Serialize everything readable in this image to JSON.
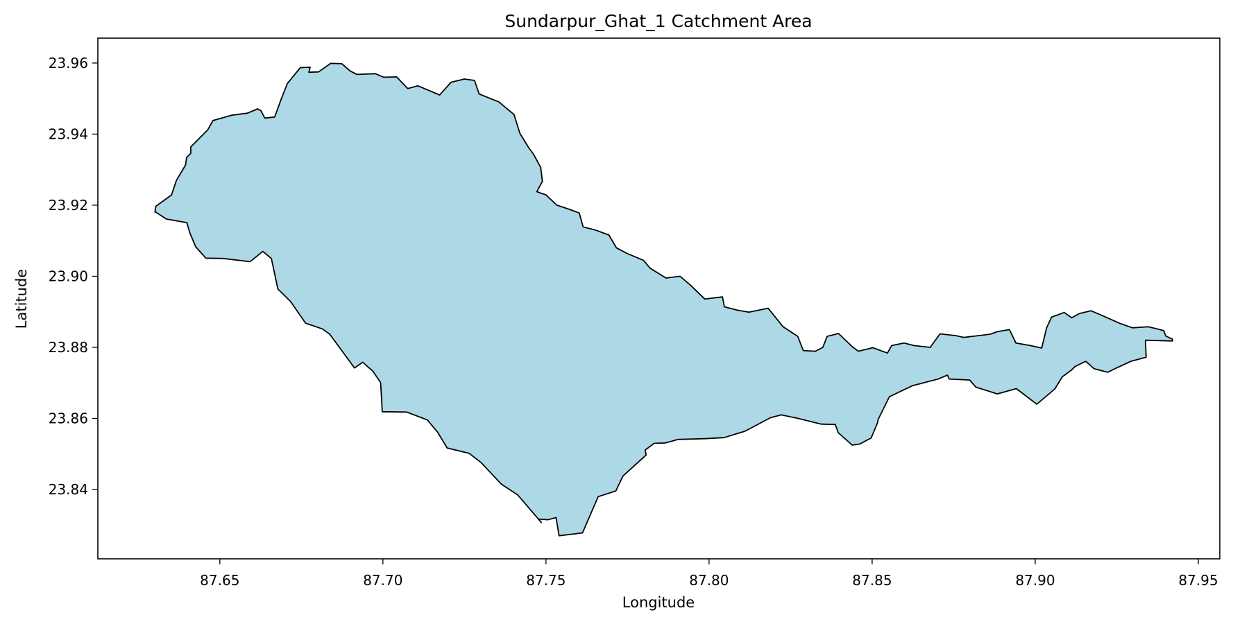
{
  "title": "Sundarpur_Ghat_1 Catchment Area",
  "axes": {
    "xlabel": "Longitude",
    "ylabel": "Latitude",
    "xticks": [
      "87.65",
      "87.70",
      "87.75",
      "87.80",
      "87.85",
      "87.90",
      "87.95"
    ],
    "yticks": [
      "23.84",
      "23.86",
      "23.88",
      "23.90",
      "23.92",
      "23.94",
      "23.96"
    ]
  },
  "colors": {
    "fill": "#add8e6",
    "outline": "#000000"
  },
  "chart_data": {
    "type": "area",
    "title": "Sundarpur_Ghat_1 Catchment Area",
    "xlabel": "Longitude",
    "ylabel": "Latitude",
    "xlim": [
      87.6126,
      87.9566
    ],
    "ylim": [
      23.8205,
      23.967
    ],
    "xticks": [
      87.65,
      87.7,
      87.75,
      87.8,
      87.85,
      87.9,
      87.95
    ],
    "yticks": [
      23.84,
      23.86,
      23.88,
      23.9,
      23.92,
      23.94,
      23.96
    ],
    "grid": false,
    "legend": "none",
    "geometry": "polygon",
    "boundary": {
      "lon": [
        87.6301,
        87.6304,
        87.6352,
        87.6367,
        87.6395,
        87.6398,
        87.6411,
        87.6411,
        87.6463,
        87.6479,
        87.6536,
        87.6585,
        87.6616,
        87.6626,
        87.6638,
        87.6668,
        87.6689,
        87.6707,
        87.6747,
        87.6777,
        87.6773,
        87.6803,
        87.684,
        87.6874,
        87.6899,
        87.692,
        87.6977,
        87.7003,
        87.7042,
        87.7076,
        87.7107,
        87.7174,
        87.7209,
        87.725,
        87.7281,
        87.7295,
        87.7335,
        87.7355,
        87.7402,
        87.742,
        87.7447,
        87.7462,
        87.7484,
        87.7489,
        87.7472,
        87.75,
        87.7533,
        87.757,
        87.7602,
        87.7614,
        87.7655,
        87.7693,
        87.7716,
        87.7749,
        87.7799,
        87.7819,
        87.7868,
        87.7911,
        87.7943,
        87.7987,
        87.8041,
        87.8047,
        87.8086,
        87.8122,
        87.8181,
        87.8227,
        87.8272,
        87.8289,
        87.8326,
        87.8349,
        87.8362,
        87.8397,
        87.8439,
        87.8458,
        87.8502,
        87.8547,
        87.856,
        87.8598,
        87.8628,
        87.8678,
        87.8708,
        87.8757,
        87.8781,
        87.8835,
        87.8862,
        87.8884,
        87.8921,
        87.8941,
        87.8985,
        87.902,
        87.9035,
        87.905,
        87.9089,
        87.9112,
        87.9135,
        87.9171,
        87.9212,
        87.9258,
        87.9298,
        87.9346,
        87.9373,
        87.9394,
        87.94,
        87.9421,
        87.9421,
        87.9338,
        87.934,
        87.9294,
        87.9247,
        87.9222,
        87.918,
        87.9155,
        87.9122,
        87.9111,
        87.9083,
        87.906,
        87.9005,
        87.8942,
        87.8884,
        87.8818,
        87.8799,
        87.8736,
        87.8731,
        87.8703,
        87.8623,
        87.8553,
        87.8519,
        87.8516,
        87.8497,
        87.8462,
        87.8439,
        87.8396,
        87.8387,
        87.8344,
        87.8269,
        87.8221,
        87.8188,
        87.811,
        87.8092,
        87.8046,
        87.7986,
        87.7905,
        87.7866,
        87.7832,
        87.7804,
        87.7807,
        87.7736,
        87.7714,
        87.766,
        87.7612,
        87.754,
        87.7531,
        87.7506,
        87.7476,
        87.7486,
        87.7413,
        87.7363,
        87.7302,
        87.7264,
        87.7197,
        87.7168,
        87.7136,
        87.7073,
        87.6998,
        87.6996,
        87.6993,
        87.6969,
        87.6938,
        87.6913,
        87.6837,
        87.6814,
        87.6763,
        87.6717,
        87.6678,
        87.6658,
        87.6632,
        87.6593,
        87.651,
        87.6457,
        87.6426,
        87.6408,
        87.6399,
        87.6336,
        87.6303,
        87.6301
      ],
      "lat": [
        23.9181,
        23.9197,
        23.9229,
        23.927,
        23.9313,
        23.9334,
        23.9346,
        23.9364,
        23.9412,
        23.9438,
        23.9453,
        23.9459,
        23.9471,
        23.9466,
        23.9445,
        23.9448,
        23.95,
        23.9542,
        23.9587,
        23.9588,
        23.9574,
        23.9575,
        23.9599,
        23.9598,
        23.9578,
        23.9568,
        23.957,
        23.956,
        23.9561,
        23.9528,
        23.9536,
        23.951,
        23.9546,
        23.9555,
        23.9551,
        23.9513,
        23.9498,
        23.9491,
        23.9455,
        23.9402,
        23.9362,
        23.9343,
        23.9306,
        23.9267,
        23.9238,
        23.9229,
        23.92,
        23.9189,
        23.9178,
        23.9139,
        23.9129,
        23.9116,
        23.908,
        23.9064,
        23.9045,
        23.9023,
        23.8995,
        23.9,
        23.8975,
        23.8936,
        23.8942,
        23.8914,
        23.8905,
        23.8899,
        23.891,
        23.8858,
        23.8831,
        23.8791,
        23.8789,
        23.88,
        23.8831,
        23.8839,
        23.8802,
        23.8789,
        23.8799,
        23.8784,
        23.8805,
        23.8812,
        23.8805,
        23.88,
        23.8838,
        23.8833,
        23.8828,
        23.8834,
        23.8837,
        23.8844,
        23.885,
        23.8812,
        23.8805,
        23.8798,
        23.8855,
        23.8885,
        23.8898,
        23.8883,
        23.8895,
        23.8903,
        23.8887,
        23.8868,
        23.8855,
        23.8858,
        23.8852,
        23.8847,
        23.8832,
        23.8823,
        23.8818,
        23.882,
        23.8772,
        23.8761,
        23.8741,
        23.873,
        23.874,
        23.8761,
        23.8746,
        23.8736,
        23.8717,
        23.8683,
        23.864,
        23.8684,
        23.8669,
        23.8688,
        23.8708,
        23.8711,
        23.8722,
        23.8711,
        23.8692,
        23.8661,
        23.8598,
        23.8586,
        23.8545,
        23.8528,
        23.8525,
        23.856,
        23.8583,
        23.8584,
        23.8601,
        23.861,
        23.8602,
        23.8564,
        23.8559,
        23.8546,
        23.8543,
        23.8541,
        23.8531,
        23.853,
        23.8511,
        23.8497,
        23.8438,
        23.8396,
        23.838,
        23.8278,
        23.827,
        23.8321,
        23.8315,
        23.8317,
        23.8307,
        23.8385,
        23.8415,
        23.8475,
        23.8502,
        23.8517,
        23.8561,
        23.8596,
        23.8618,
        23.8619,
        23.8653,
        23.8701,
        23.8733,
        23.8758,
        23.8742,
        23.8837,
        23.8852,
        23.8868,
        23.8929,
        23.8964,
        23.905,
        23.907,
        23.9041,
        23.905,
        23.9051,
        23.9083,
        23.9122,
        23.9151,
        23.9161,
        23.9181
      ]
    }
  }
}
